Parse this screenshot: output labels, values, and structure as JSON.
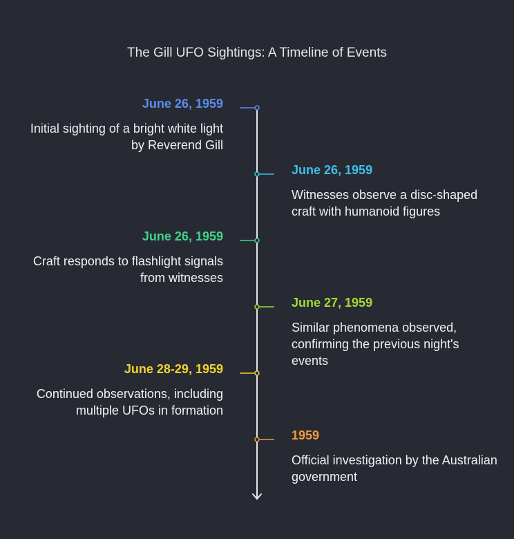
{
  "title": "The Gill UFO Sightings: A Timeline of Events",
  "events": [
    {
      "date": "June 26, 1959",
      "description": "Initial sighting of a bright white light by Reverend Gill",
      "color": "#5b8def",
      "side": "left"
    },
    {
      "date": "June 26, 1959",
      "description": "Witnesses observe a disc-shaped craft with humanoid figures",
      "color": "#3ec0e8",
      "side": "right"
    },
    {
      "date": "June 26, 1959",
      "description": "Craft responds to flashlight signals from witnesses",
      "color": "#3ed48a",
      "side": "left"
    },
    {
      "date": "June 27, 1959",
      "description": "Similar phenomena observed, confirming the previous night's events",
      "color": "#a6d83a",
      "side": "right"
    },
    {
      "date": "June 28-29, 1959",
      "description": "Continued observations, including multiple UFOs in formation",
      "color": "#f2d32e",
      "side": "left"
    },
    {
      "date": "1959",
      "description": "Official investigation by the Australian government",
      "color": "#f29a3a",
      "side": "right"
    }
  ],
  "colors": {
    "background": "#272a33",
    "axis": "#e6e6e6",
    "text": "#f0f0f0"
  }
}
